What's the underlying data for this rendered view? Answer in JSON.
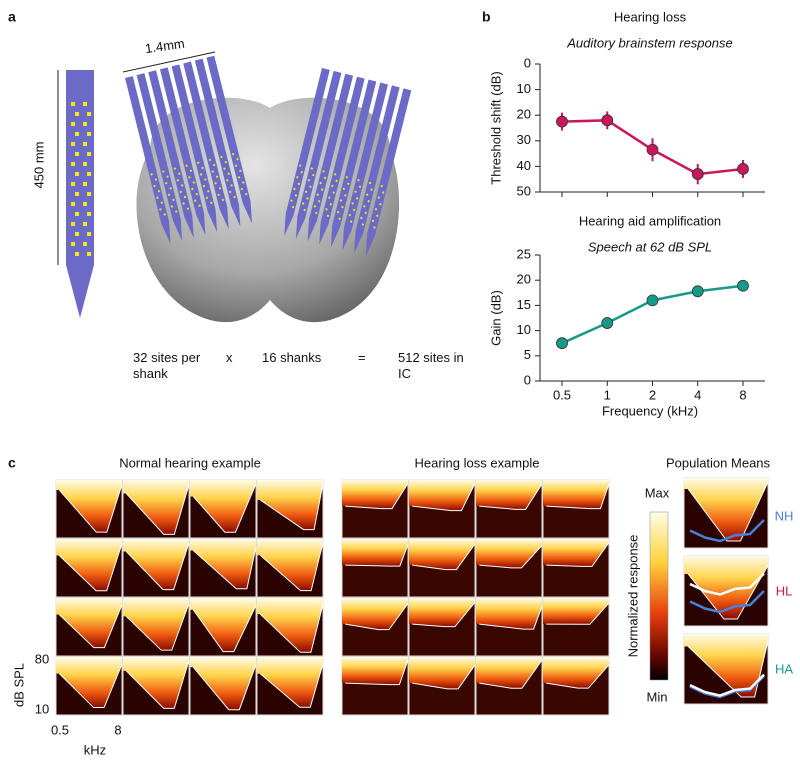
{
  "panel_labels": [
    "a",
    "b",
    "c"
  ],
  "panel_a": {
    "scale_length": "1.4mm",
    "shank_length": "450 mm",
    "equation": [
      "32 sites per shank",
      "x",
      "16 shanks",
      "=",
      "512 sites in IC"
    ]
  },
  "chart_data": [
    {
      "type": "line",
      "title": "Hearing loss",
      "subtitle": "Auditory brainstem response",
      "y_label": "Threshold shift (dB)",
      "categories": [
        null,
        null,
        null,
        null,
        null
      ],
      "values": [
        22.5,
        22,
        33.5,
        43,
        41
      ],
      "errors": [
        3.5,
        3.5,
        4.5,
        4,
        3.5
      ],
      "color": "#c8175d",
      "ylim": [
        0,
        50
      ],
      "y_inverted": true,
      "yticks": [
        0,
        10,
        20,
        30,
        40,
        50
      ]
    },
    {
      "type": "line",
      "title": "Hearing aid amplification",
      "subtitle": "Speech at 62 dB SPL",
      "y_label": "Gain (dB)",
      "x_label": "Frequency (kHz)",
      "categories": [
        "0.5",
        "1",
        "2",
        "4",
        "8"
      ],
      "values": [
        7.5,
        11.5,
        16,
        17.8,
        18.9
      ],
      "color": "#17998a",
      "ylim": [
        0,
        25
      ],
      "y_inverted": false,
      "yticks": [
        0,
        5,
        10,
        15,
        20,
        25
      ]
    }
  ],
  "panel_c": {
    "titles": [
      "Normal hearing example",
      "Hearing loss example",
      "Population Means"
    ],
    "colorbar": {
      "max": "Max",
      "min": "Min",
      "label": "Normalized response"
    },
    "groups": [
      "NH",
      "HL",
      "HA"
    ],
    "y_axis": {
      "label": "dB SPL",
      "ticks": [
        "80",
        "10"
      ]
    },
    "x_axis": {
      "label": "kHz",
      "ticks": [
        "0.5",
        "8"
      ]
    }
  }
}
